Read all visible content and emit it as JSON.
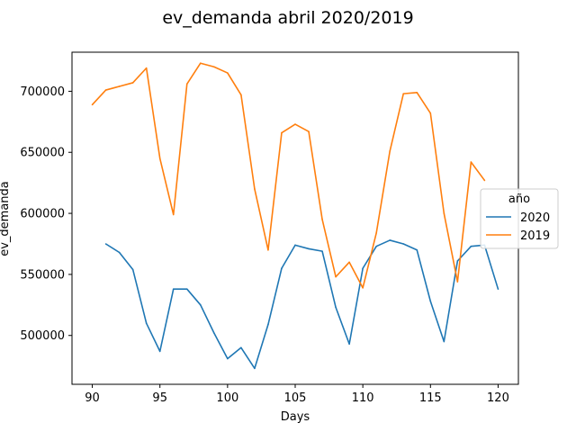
{
  "chart_data": {
    "type": "line",
    "title": "ev_demanda abril 2020/2019",
    "xlabel": "Days",
    "ylabel": "ev_demanda",
    "xlim": [
      88.5,
      121.5
    ],
    "ylim": [
      460000,
      732000
    ],
    "xticks": [
      90,
      95,
      100,
      105,
      110,
      115,
      120
    ],
    "yticks": [
      500000,
      550000,
      600000,
      650000,
      700000
    ],
    "grid": false,
    "legend": {
      "title": "año",
      "placement": "right"
    },
    "series": [
      {
        "name": "2020",
        "color": "#1f77b4",
        "x": [
          91,
          92,
          93,
          94,
          95,
          96,
          97,
          98,
          99,
          100,
          101,
          102,
          103,
          104,
          105,
          106,
          107,
          108,
          109,
          110,
          111,
          112,
          113,
          114,
          115,
          116,
          117,
          118,
          119,
          120
        ],
        "values": [
          575000,
          568000,
          554000,
          510000,
          487000,
          538000,
          538000,
          525000,
          502000,
          481000,
          490000,
          473000,
          509000,
          555000,
          574000,
          571000,
          569000,
          523000,
          493000,
          555000,
          573000,
          578000,
          575000,
          570000,
          528000,
          495000,
          561000,
          573000,
          574000,
          538000
        ]
      },
      {
        "name": "2019",
        "color": "#ff7f0e",
        "x": [
          90,
          91,
          92,
          93,
          94,
          95,
          96,
          97,
          98,
          99,
          100,
          101,
          102,
          103,
          104,
          105,
          106,
          107,
          108,
          109,
          110,
          111,
          112,
          113,
          114,
          115,
          116,
          117,
          118,
          119
        ],
        "values": [
          689000,
          701000,
          704000,
          707000,
          719000,
          645000,
          599000,
          706000,
          723000,
          720000,
          715000,
          697000,
          620000,
          570000,
          666000,
          673000,
          667000,
          595000,
          548000,
          560000,
          539000,
          584000,
          651000,
          698000,
          699000,
          682000,
          600000,
          544000,
          642000,
          627000
        ]
      }
    ]
  }
}
